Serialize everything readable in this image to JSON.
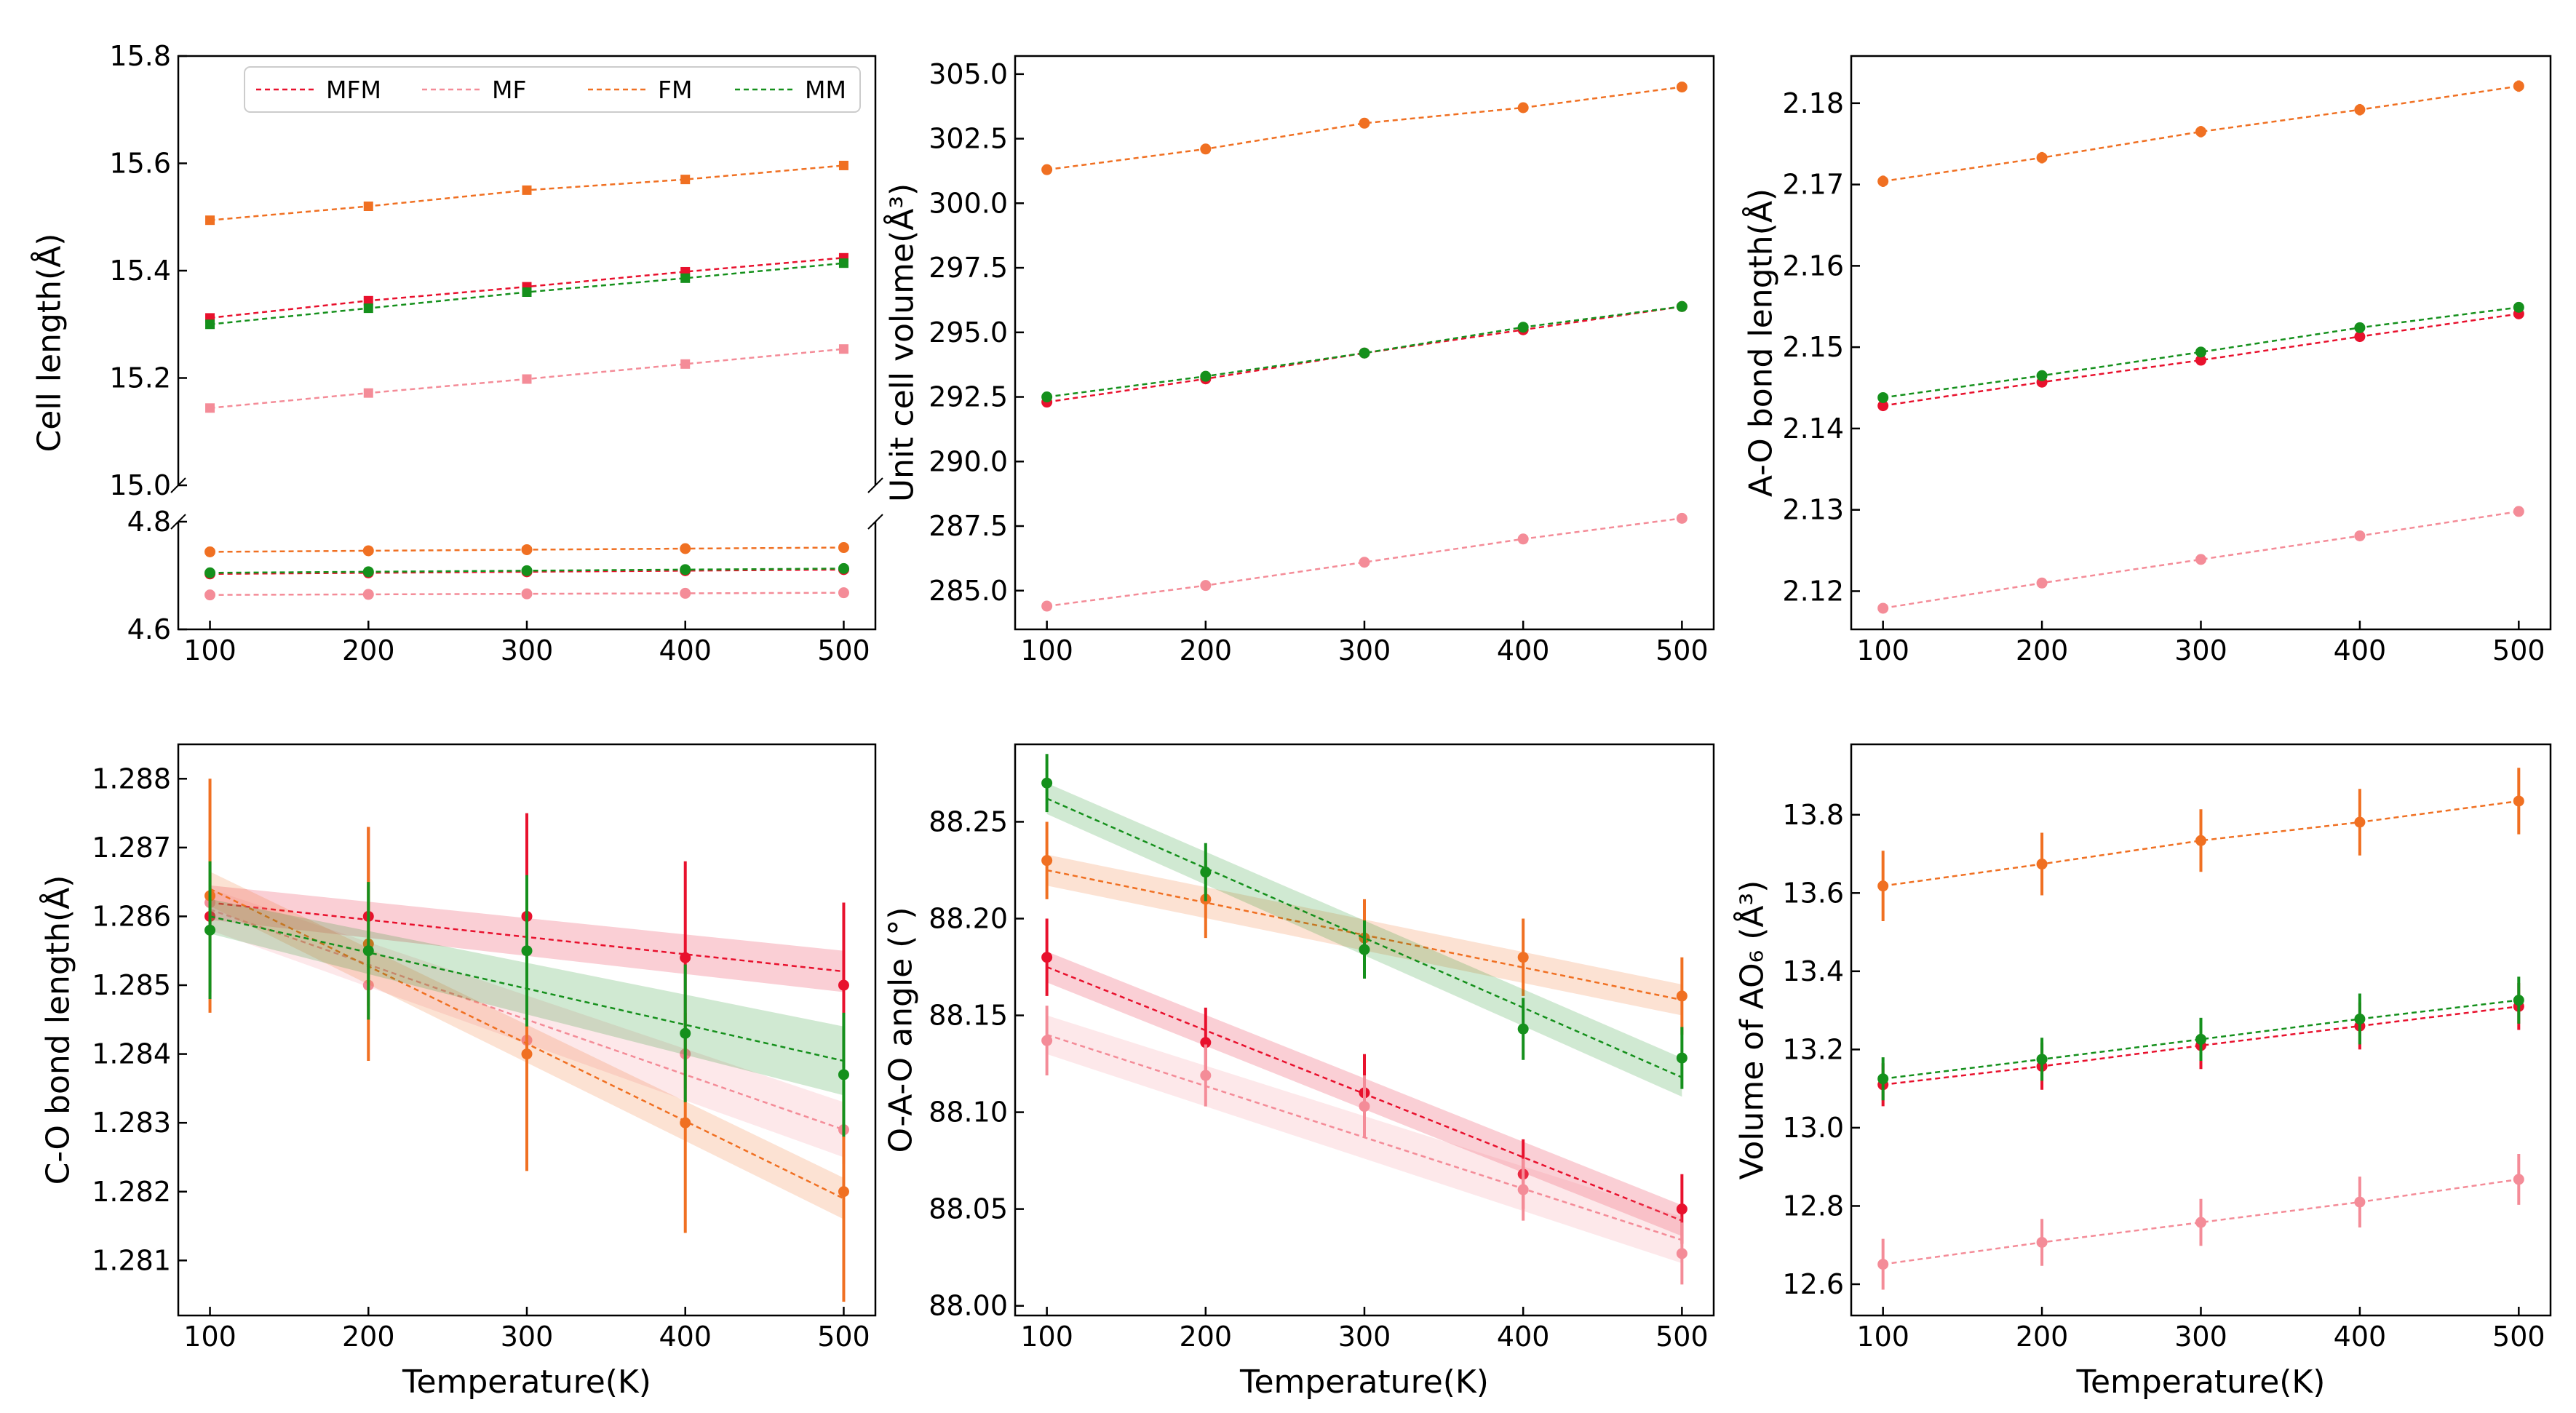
{
  "colors": {
    "MFM": "#e8112d",
    "MF": "#f48c98",
    "FM": "#f07022",
    "MM": "#15901c"
  },
  "legend": {
    "placement": "top",
    "entries": [
      "MFM",
      "MF",
      "FM",
      "MM"
    ]
  },
  "chart_data": [
    {
      "type": "line",
      "panel": "a",
      "broken_y_axis": true,
      "xlabel": "",
      "ylabel": "Cell length(Å)",
      "x": [
        100,
        200,
        300,
        400,
        500
      ],
      "xticks": [
        100,
        200,
        300,
        400,
        500
      ],
      "xlim": [
        80,
        520
      ],
      "upper_ylim": [
        15.0,
        15.8
      ],
      "upper_yticks": [
        "15.0",
        "15.2",
        "15.4",
        "15.6",
        "15.8"
      ],
      "lower_ylim": [
        4.6,
        4.8
      ],
      "lower_yticks": [
        "4.6",
        "4.8"
      ],
      "marker": "square (upper), circle (lower)",
      "series": [
        {
          "name": "MFM",
          "upper": [
            15.312,
            15.344,
            15.37,
            15.398,
            15.424
          ],
          "lower": [
            4.703,
            4.705,
            4.707,
            4.709,
            4.711
          ]
        },
        {
          "name": "MF",
          "upper": [
            15.144,
            15.172,
            15.198,
            15.226,
            15.254
          ],
          "lower": [
            4.664,
            4.665,
            4.666,
            4.667,
            4.668
          ]
        },
        {
          "name": "FM",
          "upper": [
            15.494,
            15.52,
            15.55,
            15.57,
            15.596
          ],
          "lower": [
            4.744,
            4.746,
            4.748,
            4.75,
            4.752
          ]
        },
        {
          "name": "MM",
          "upper": [
            15.3,
            15.33,
            15.36,
            15.386,
            15.414
          ],
          "lower": [
            4.705,
            4.707,
            4.709,
            4.711,
            4.713
          ]
        }
      ]
    },
    {
      "type": "line",
      "panel": "b",
      "xlabel": "",
      "ylabel": "Unit cell volume(Å³)",
      "x": [
        100,
        200,
        300,
        400,
        500
      ],
      "xticks": [
        100,
        200,
        300,
        400,
        500
      ],
      "xlim": [
        80,
        520
      ],
      "ylim": [
        283.5,
        305.7
      ],
      "yticks": [
        "285.0",
        "287.5",
        "290.0",
        "292.5",
        "295.0",
        "297.5",
        "300.0",
        "302.5",
        "305.0"
      ],
      "series": [
        {
          "name": "MFM",
          "values": [
            292.3,
            293.2,
            294.2,
            295.1,
            296.0
          ]
        },
        {
          "name": "MF",
          "values": [
            284.4,
            285.2,
            286.1,
            287.0,
            287.8
          ]
        },
        {
          "name": "FM",
          "values": [
            301.3,
            302.1,
            303.1,
            303.7,
            304.5
          ]
        },
        {
          "name": "MM",
          "values": [
            292.5,
            293.3,
            294.2,
            295.2,
            296.0
          ]
        }
      ]
    },
    {
      "type": "line",
      "panel": "c",
      "xlabel": "",
      "ylabel": "A-O bond length(Å)",
      "x": [
        100,
        200,
        300,
        400,
        500
      ],
      "xticks": [
        100,
        200,
        300,
        400,
        500
      ],
      "xlim": [
        80,
        520
      ],
      "ylim": [
        2.1153,
        2.1858
      ],
      "yticks": [
        "2.12",
        "2.13",
        "2.14",
        "2.15",
        "2.16",
        "2.17",
        "2.18"
      ],
      "series": [
        {
          "name": "MFM",
          "values": [
            2.1428,
            2.1457,
            2.1484,
            2.1513,
            2.1541
          ],
          "err": [
            0.0004,
            0.0004,
            0.0004,
            0.0004,
            0.0004
          ]
        },
        {
          "name": "MF",
          "values": [
            2.1179,
            2.121,
            2.1239,
            2.1268,
            2.1298
          ],
          "err": [
            0.0004,
            0.0004,
            0.0004,
            0.0004,
            0.0004
          ]
        },
        {
          "name": "FM",
          "values": [
            2.1704,
            2.1733,
            2.1765,
            2.1792,
            2.1821
          ],
          "err": [
            0.0007,
            0.0007,
            0.0007,
            0.0007,
            0.0007
          ]
        },
        {
          "name": "MM",
          "values": [
            2.1438,
            2.1465,
            2.1494,
            2.1524,
            2.1549
          ],
          "err": [
            0.0004,
            0.0004,
            0.0004,
            0.0004,
            0.0004
          ]
        }
      ]
    },
    {
      "type": "line",
      "panel": "d",
      "xlabel": "Temperature(K)",
      "ylabel": "C-O bond length(Å)",
      "x": [
        100,
        200,
        300,
        400,
        500
      ],
      "xticks": [
        100,
        200,
        300,
        400,
        500
      ],
      "xlim": [
        80,
        520
      ],
      "ylim": [
        1.2802,
        1.2885
      ],
      "yticks": [
        "1.281",
        "1.282",
        "1.283",
        "1.284",
        "1.285",
        "1.286",
        "1.287",
        "1.288"
      ],
      "series": [
        {
          "name": "MFM",
          "values": [
            1.286,
            1.286,
            1.286,
            1.2854,
            1.285
          ],
          "err": [
            0.0011,
            0.0013,
            0.0015,
            0.0014,
            0.0012
          ],
          "fit": [
            1.2862,
            1.2852
          ],
          "band": [
            0.00025,
            0.0003
          ]
        },
        {
          "name": "MF",
          "values": [
            1.2862,
            1.285,
            1.2842,
            1.284,
            1.2829
          ],
          "err": [
            0.0004,
            0.0005,
            0.0005,
            0.0005,
            0.0005
          ],
          "fit": [
            1.2861,
            1.2829
          ],
          "band": [
            0.0003,
            0.0004
          ]
        },
        {
          "name": "FM",
          "values": [
            1.2863,
            1.2856,
            1.284,
            1.283,
            1.282
          ],
          "err": [
            0.0017,
            0.0017,
            0.0017,
            0.0016,
            0.0016
          ],
          "fit": [
            1.2864,
            1.2819
          ],
          "band": [
            0.00025,
            0.0003
          ]
        },
        {
          "name": "MM",
          "values": [
            1.2858,
            1.2855,
            1.2855,
            1.2843,
            1.2837
          ],
          "err": [
            0.001,
            0.001,
            0.0011,
            0.001,
            0.0009
          ],
          "fit": [
            1.286,
            1.2839
          ],
          "band": [
            0.00025,
            0.0005
          ]
        }
      ]
    },
    {
      "type": "line",
      "panel": "e",
      "xlabel": "Temperature(K)",
      "ylabel": "O-A-O angle (°)",
      "x": [
        100,
        200,
        300,
        400,
        500
      ],
      "xticks": [
        100,
        200,
        300,
        400,
        500
      ],
      "xlim": [
        80,
        520
      ],
      "ylim": [
        87.995,
        88.29
      ],
      "yticks": [
        "88.00",
        "88.05",
        "88.10",
        "88.15",
        "88.20",
        "88.25"
      ],
      "series": [
        {
          "name": "MFM",
          "values": [
            88.18,
            88.136,
            88.11,
            88.068,
            88.05
          ],
          "err": [
            0.02,
            0.018,
            0.02,
            0.018,
            0.018
          ],
          "fit": [
            88.175,
            88.044
          ],
          "band": [
            0.008,
            0.008
          ]
        },
        {
          "name": "MF",
          "values": [
            88.137,
            88.119,
            88.103,
            88.06,
            88.027
          ],
          "err": [
            0.018,
            0.016,
            0.016,
            0.016,
            0.016
          ],
          "fit": [
            88.14,
            88.034
          ],
          "band": [
            0.01,
            0.012
          ]
        },
        {
          "name": "FM",
          "values": [
            88.23,
            88.21,
            88.19,
            88.18,
            88.16
          ],
          "err": [
            0.02,
            0.02,
            0.02,
            0.02,
            0.02
          ],
          "fit": [
            88.225,
            88.158
          ],
          "band": [
            0.008,
            0.008
          ]
        },
        {
          "name": "MM",
          "values": [
            88.27,
            88.224,
            88.184,
            88.143,
            88.128
          ],
          "err": [
            0.015,
            0.015,
            0.015,
            0.016,
            0.016
          ],
          "fit": [
            88.262,
            88.118
          ],
          "band": [
            0.008,
            0.01
          ]
        }
      ]
    },
    {
      "type": "line",
      "panel": "f",
      "xlabel": "Temperature(K)",
      "ylabel": "Volume of AO₆ (Å³)",
      "x": [
        100,
        200,
        300,
        400,
        500
      ],
      "xticks": [
        100,
        200,
        300,
        400,
        500
      ],
      "xlim": [
        80,
        520
      ],
      "ylim": [
        12.52,
        13.98
      ],
      "yticks": [
        "12.6",
        "12.8",
        "13.0",
        "13.2",
        "13.4",
        "13.6",
        "13.8"
      ],
      "series": [
        {
          "name": "MFM",
          "values": [
            13.11,
            13.157,
            13.21,
            13.26,
            13.31
          ],
          "err": [
            0.055,
            0.06,
            0.06,
            0.06,
            0.06
          ]
        },
        {
          "name": "MF",
          "values": [
            12.651,
            12.707,
            12.758,
            12.81,
            12.868
          ],
          "err": [
            0.065,
            0.06,
            0.06,
            0.065,
            0.065
          ]
        },
        {
          "name": "FM",
          "values": [
            13.618,
            13.674,
            13.734,
            13.781,
            13.835
          ],
          "err": [
            0.09,
            0.08,
            0.08,
            0.085,
            0.085
          ]
        },
        {
          "name": "MM",
          "values": [
            13.125,
            13.175,
            13.226,
            13.278,
            13.326
          ],
          "err": [
            0.055,
            0.055,
            0.055,
            0.065,
            0.06
          ]
        }
      ]
    }
  ]
}
